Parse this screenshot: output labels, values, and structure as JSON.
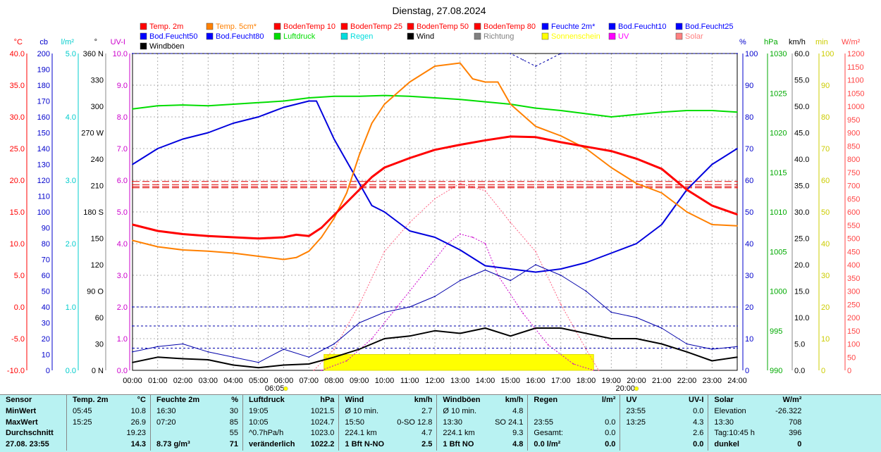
{
  "chart_data": {
    "type": "line",
    "title": "Dienstag, 27.08.2024",
    "x_ticks": [
      "00:00",
      "01:00",
      "02:00",
      "03:00",
      "04:00",
      "05:00",
      "06:00",
      "07:00",
      "08:00",
      "09:00",
      "10:00",
      "11:00",
      "12:00",
      "13:00",
      "14:00",
      "15:00",
      "16:00",
      "17:00",
      "18:00",
      "19:00",
      "20:00",
      "21:00",
      "22:00",
      "23:00",
      "24:00"
    ],
    "sunrise_label": "06:05",
    "sunset_label": "20:00",
    "grid": true,
    "legend_placement": "top",
    "left_axes": [
      {
        "unit": "°C",
        "color": "#ff0000",
        "ticks": [
          "40.0",
          "35.0",
          "30.0",
          "25.0",
          "20.0",
          "15.0",
          "10.0",
          "5.0",
          "0.0",
          "-5.0",
          "-10.0"
        ]
      },
      {
        "unit": "cb",
        "color": "#0000cc",
        "ticks": [
          "200",
          "190",
          "180",
          "170",
          "160",
          "150",
          "140",
          "130",
          "120",
          "110",
          "100",
          "90",
          "80",
          "70",
          "60",
          "50",
          "40",
          "30",
          "20",
          "10",
          "0"
        ]
      },
      {
        "unit": "l/m²",
        "color": "#00cccc",
        "ticks": [
          "5.0",
          "4.0",
          "3.0",
          "2.0",
          "1.0",
          "0.0"
        ]
      },
      {
        "unit": "°",
        "color": "#000000",
        "ticks": [
          "360 N",
          "330",
          "300",
          "270 W",
          "240",
          "210",
          "180 S",
          "150",
          "120",
          "90 O",
          "60",
          "30",
          "0 N"
        ]
      },
      {
        "unit": "UV-I",
        "color": "#cc00cc",
        "ticks": [
          "10.0",
          "9.0",
          "8.0",
          "7.0",
          "6.0",
          "5.0",
          "4.0",
          "3.0",
          "2.0",
          "1.0",
          "0.0"
        ]
      }
    ],
    "right_axes": [
      {
        "unit": "%",
        "color": "#0000cc",
        "ticks": [
          "100",
          "90",
          "80",
          "70",
          "60",
          "50",
          "40",
          "30",
          "20",
          "10",
          "0"
        ]
      },
      {
        "unit": "hPa",
        "color": "#00aa00",
        "ticks": [
          "1030",
          "1025",
          "1020",
          "1015",
          "1010",
          "1005",
          "1000",
          "995",
          "990"
        ]
      },
      {
        "unit": "km/h",
        "color": "#000000",
        "ticks": [
          "60.0",
          "55.0",
          "50.0",
          "45.0",
          "40.0",
          "35.0",
          "30.0",
          "25.0",
          "20.0",
          "15.0",
          "10.0",
          "5.0",
          "0.0"
        ]
      },
      {
        "unit": "min",
        "color": "#cccc00",
        "ticks": [
          "100",
          "90",
          "80",
          "70",
          "60",
          "50",
          "40",
          "30",
          "20",
          "10",
          "0"
        ]
      },
      {
        "unit": "W/m²",
        "color": "#ff4444",
        "ticks": [
          "1200",
          "1150",
          "1100",
          "1050",
          "1000",
          "950",
          "900",
          "850",
          "800",
          "750",
          "700",
          "650",
          "600",
          "550",
          "500",
          "450",
          "400",
          "350",
          "300",
          "250",
          "200",
          "150",
          "100",
          "50",
          "0"
        ]
      }
    ],
    "legend": [
      {
        "label": "Temp. 2m",
        "color": "#ff0000"
      },
      {
        "label": "Temp. 5cm*",
        "color": "#ff8000"
      },
      {
        "label": "BodenTemp 10",
        "color": "#ff0000"
      },
      {
        "label": "BodenTemp 25",
        "color": "#ff0000"
      },
      {
        "label": "BodenTemp 50",
        "color": "#ff0000"
      },
      {
        "label": "BodenTemp 80",
        "color": "#ff0000"
      },
      {
        "label": "Feuchte 2m*",
        "color": "#0000ff"
      },
      {
        "label": "Bod.Feucht10",
        "color": "#0000ff"
      },
      {
        "label": "Bod.Feucht25",
        "color": "#0000ff"
      },
      {
        "label": "Bod.Feucht50",
        "color": "#0000ff"
      },
      {
        "label": "Bod.Feucht80",
        "color": "#0000ff"
      },
      {
        "label": "Luftdruck",
        "color": "#00dd00"
      },
      {
        "label": "Regen",
        "color": "#00dddd"
      },
      {
        "label": "Wind",
        "color": "#000000"
      },
      {
        "label": "Richtung",
        "color": "#808080"
      },
      {
        "label": "Sonnenschein",
        "color": "#ffff00"
      },
      {
        "label": "UV",
        "color": "#ff00ff"
      },
      {
        "label": "Solar",
        "color": "#ff8080"
      },
      {
        "label": "Windböen",
        "color": "#000000"
      }
    ],
    "series": [
      {
        "name": "Temp. 2m",
        "unit": "°C",
        "x": [
          0,
          1,
          2,
          3,
          4,
          5,
          6,
          6.5,
          7,
          7.5,
          8,
          8.5,
          9,
          9.5,
          10,
          11,
          12,
          13,
          14,
          15,
          16,
          17,
          18,
          19,
          20,
          21,
          22,
          23,
          24
        ],
        "values": [
          13.0,
          12.0,
          11.5,
          11.2,
          11.0,
          10.8,
          11.0,
          11.4,
          11.2,
          12.5,
          14.5,
          16.5,
          18.5,
          20.5,
          22.0,
          23.5,
          24.8,
          25.6,
          26.3,
          26.9,
          26.8,
          26.0,
          25.3,
          24.6,
          23.4,
          21.8,
          18.5,
          16.0,
          14.6
        ]
      },
      {
        "name": "Temp. 5cm*",
        "unit": "°C",
        "x": [
          0,
          1,
          2,
          3,
          4,
          5,
          6,
          6.5,
          7,
          7.5,
          8,
          8.5,
          9,
          9.5,
          10,
          11,
          12,
          13,
          13.5,
          14,
          14.5,
          15,
          16,
          17,
          18,
          19,
          20,
          21,
          22,
          23,
          24
        ],
        "values": [
          10.5,
          9.5,
          9.0,
          8.8,
          8.5,
          8.0,
          7.5,
          7.8,
          8.8,
          11.0,
          14.0,
          18.0,
          24.0,
          29.0,
          32.0,
          35.5,
          38.0,
          38.5,
          36.0,
          35.5,
          35.5,
          32.0,
          28.5,
          27.0,
          25.0,
          22.0,
          19.5,
          18.0,
          15.0,
          13.0,
          12.8
        ]
      },
      {
        "name": "BodenTemp 10",
        "unit": "°C",
        "x": [
          0,
          24
        ],
        "values": [
          19.8,
          19.8
        ]
      },
      {
        "name": "BodenTemp 25",
        "unit": "°C",
        "x": [
          0,
          24
        ],
        "values": [
          19.3,
          19.3
        ]
      },
      {
        "name": "BodenTemp 50",
        "unit": "°C",
        "x": [
          0,
          24
        ],
        "values": [
          19.0,
          19.0
        ]
      },
      {
        "name": "BodenTemp 80",
        "unit": "°C",
        "x": [
          0,
          24
        ],
        "values": [
          18.8,
          18.8
        ]
      },
      {
        "name": "Feuchte 2m*",
        "unit": "%",
        "x": [
          0,
          1,
          2,
          3,
          4,
          5,
          6,
          7,
          7.3,
          8,
          8.5,
          9,
          9.5,
          10,
          11,
          12,
          13,
          14,
          15,
          16,
          17,
          18,
          19,
          20,
          21,
          22,
          23,
          24
        ],
        "values": [
          65,
          70,
          73,
          75,
          78,
          80,
          83,
          85,
          85,
          73,
          66,
          59,
          52,
          50,
          44,
          42,
          38,
          33,
          32,
          31,
          32,
          34,
          37,
          40,
          46,
          57,
          65,
          70
        ]
      },
      {
        "name": "Bod.Feucht10",
        "unit": "%",
        "x": [
          0,
          24
        ],
        "values": [
          20,
          20
        ]
      },
      {
        "name": "Bod.Feucht25",
        "unit": "%",
        "x": [
          0,
          24
        ],
        "values": [
          14,
          14
        ]
      },
      {
        "name": "Bod.Feucht50",
        "unit": "%",
        "x": [
          0,
          24
        ],
        "values": [
          7,
          7
        ]
      },
      {
        "name": "Bod.Feucht80",
        "unit": "%",
        "x": [
          0,
          15,
          15.5,
          16,
          16.5,
          17,
          24
        ],
        "values": [
          100,
          100,
          98,
          96,
          98,
          100,
          100
        ]
      },
      {
        "name": "Luftdruck",
        "unit": "hPa",
        "x": [
          0,
          1,
          2,
          3,
          4,
          5,
          6,
          7,
          8,
          9,
          10,
          11,
          12,
          13,
          14,
          15,
          16,
          17,
          18,
          19,
          20,
          21,
          22,
          23,
          24
        ],
        "values": [
          1023.0,
          1023.4,
          1023.5,
          1023.4,
          1023.6,
          1023.8,
          1024.0,
          1024.4,
          1024.6,
          1024.6,
          1024.7,
          1024.6,
          1024.4,
          1024.2,
          1023.9,
          1023.6,
          1023.1,
          1022.8,
          1022.4,
          1022.0,
          1022.3,
          1022.6,
          1022.8,
          1022.8,
          1022.6
        ]
      },
      {
        "name": "Wind",
        "unit": "km/h",
        "x": [
          0,
          1,
          2,
          3,
          4,
          5,
          6,
          7,
          8,
          9,
          10,
          11,
          12,
          13,
          14,
          15,
          16,
          17,
          18,
          19,
          20,
          21,
          22,
          23,
          24
        ],
        "values": [
          1.5,
          2.5,
          2.2,
          2.0,
          1.0,
          0.5,
          1.0,
          1.2,
          2.5,
          4.0,
          6.0,
          6.5,
          7.5,
          7.0,
          8.0,
          6.5,
          8.0,
          8.0,
          7.0,
          6.0,
          6.0,
          5.0,
          3.5,
          1.8,
          2.5
        ]
      },
      {
        "name": "Windböen",
        "unit": "km/h",
        "x": [
          0,
          1,
          2,
          3,
          4,
          5,
          6,
          7,
          8,
          9,
          10,
          11,
          12,
          13,
          14,
          15,
          16,
          17,
          18,
          19,
          20,
          21,
          22,
          23,
          24
        ],
        "values": [
          3.5,
          4.5,
          5.0,
          3.5,
          2.5,
          1.5,
          4.0,
          2.5,
          5.0,
          9.0,
          11.0,
          12.0,
          14.0,
          17.0,
          19.0,
          17.0,
          20.0,
          18.0,
          15.0,
          11.0,
          10.0,
          8.0,
          5.0,
          4.0,
          4.5
        ]
      },
      {
        "name": "UV",
        "unit": "UV-I",
        "x": [
          7.5,
          8.5,
          9.5,
          10.5,
          11.5,
          12.5,
          13,
          13.5,
          14,
          14.5,
          15.5,
          16.5,
          17.5,
          18.3
        ],
        "values": [
          0.0,
          0.3,
          1.0,
          2.0,
          3.0,
          4.0,
          4.3,
          4.2,
          4.0,
          3.0,
          1.8,
          0.8,
          0.2,
          0.0
        ]
      },
      {
        "name": "Solar",
        "unit": "W/m²",
        "x": [
          7.2,
          8,
          9,
          10,
          11,
          12,
          13,
          14,
          15,
          16,
          17,
          18,
          18.5
        ],
        "values": [
          0,
          80,
          250,
          450,
          560,
          650,
          708,
          680,
          560,
          450,
          250,
          80,
          0
        ]
      },
      {
        "name": "Sonnenschein",
        "unit": "min",
        "x": [
          7.6,
          18.3
        ],
        "values": [
          5,
          5
        ]
      }
    ]
  },
  "stats": {
    "headers": [
      "Sensor",
      "Temp. 2m",
      "°C",
      "Feuchte 2m",
      "%",
      "Luftdruck",
      "hPa",
      "Wind",
      "km/h",
      "Windböen",
      "km/h",
      "Regen",
      "l/m²",
      "UV",
      "UV-I",
      "Solar",
      "W/m²"
    ],
    "rows": [
      [
        "MinWert",
        "05:45",
        "10.8",
        "16:30",
        "30",
        "19:05",
        "1021.5",
        "Ø 10 min.",
        "2.7",
        "Ø 10 min.",
        "4.8",
        "",
        "",
        "23:55",
        "0.0",
        "Elevation",
        "-26.322"
      ],
      [
        "MaxWert",
        "15:25",
        "26.9",
        "07:20",
        "85",
        "10:05",
        "1024.7",
        "15:50",
        "0-SO 12.8",
        "13:30",
        "SO 24.1",
        "23:55",
        "0.0",
        "13:25",
        "4.3",
        "13:30",
        "708"
      ],
      [
        "Durchschnitt",
        "",
        "19.23",
        "",
        "55",
        "^0.7hPa/h",
        "1023.0",
        "224.1 km",
        "4.7",
        "224.1 km",
        "9.3",
        "Gesamt:",
        "0.0",
        "",
        "2.6",
        "Tag:10:45 h",
        "396"
      ],
      [
        "27.08. 23:55",
        "",
        "14.3",
        "8.73 g/m³",
        "71",
        "veränderlich",
        "1022.2",
        "1 Bft N-NO",
        "2.5",
        "1 Bft NO",
        "4.8",
        "0.0 l/m²",
        "0.0",
        "",
        "0.0",
        "dunkel",
        "0"
      ]
    ]
  }
}
